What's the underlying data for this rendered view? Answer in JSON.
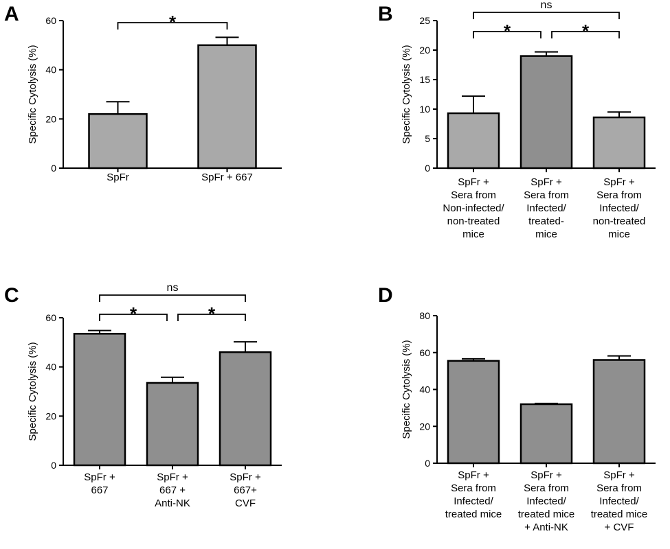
{
  "chart_data": [
    {
      "panel": "A",
      "type": "bar",
      "ylabel": "Specific Cytolysis (%)",
      "ylim": [
        0,
        60
      ],
      "yticks": [
        0,
        20,
        40,
        60
      ],
      "bar_color": "#a9a9a9",
      "categories": [
        [
          "SpFr"
        ],
        [
          "SpFr + 667"
        ]
      ],
      "values": [
        22,
        50
      ],
      "errors": [
        5,
        3.2
      ],
      "significance": [
        {
          "from": 0,
          "to": 1,
          "label": "*"
        }
      ]
    },
    {
      "panel": "B",
      "type": "bar",
      "ylabel": "Specific Cytolysis (%)",
      "ylim": [
        0,
        25
      ],
      "yticks": [
        0,
        5,
        10,
        15,
        20,
        25
      ],
      "bar_colors": [
        "#a9a9a9",
        "#8f8f8f",
        "#a9a9a9"
      ],
      "categories": [
        [
          "SpFr +",
          "Sera from",
          "Non-infected/",
          "non-treated",
          "mice"
        ],
        [
          "SpFr +",
          "Sera from",
          "Infected/",
          "treated-",
          "mice"
        ],
        [
          "SpFr +",
          "Sera from",
          "Infected/",
          "non-treated",
          "mice"
        ]
      ],
      "values": [
        9.3,
        19,
        8.6
      ],
      "errors": [
        2.9,
        0.7,
        0.9
      ],
      "significance": [
        {
          "from": 0,
          "to": 1,
          "label": "*"
        },
        {
          "from": 1,
          "to": 2,
          "label": "*"
        },
        {
          "from": 0,
          "to": 2,
          "label": "ns"
        }
      ]
    },
    {
      "panel": "C",
      "type": "bar",
      "ylabel": "Specific Cytolysis (%)",
      "ylim": [
        0,
        60
      ],
      "yticks": [
        0,
        20,
        40,
        60
      ],
      "bar_color": "#8f8f8f",
      "categories": [
        [
          "SpFr +",
          "667"
        ],
        [
          "SpFr +",
          "667 +",
          "Anti-NK"
        ],
        [
          "SpFr +",
          "667+",
          "CVF"
        ]
      ],
      "values": [
        53.5,
        33.5,
        46
      ],
      "errors": [
        1.3,
        2.3,
        4.2
      ],
      "significance": [
        {
          "from": 0,
          "to": 1,
          "label": "*"
        },
        {
          "from": 1,
          "to": 2,
          "label": "*"
        },
        {
          "from": 0,
          "to": 2,
          "label": "ns"
        }
      ]
    },
    {
      "panel": "D",
      "type": "bar",
      "ylabel": "Specific Cytolysis (%)",
      "ylim": [
        0,
        80
      ],
      "yticks": [
        0,
        20,
        40,
        60,
        80
      ],
      "bar_color": "#8f8f8f",
      "categories": [
        [
          "SpFr +",
          "Sera from",
          "Infected/",
          "treated mice"
        ],
        [
          "SpFr +",
          "Sera from",
          "Infected/",
          "treated mice",
          "+  Anti-NK"
        ],
        [
          "SpFr +",
          "Sera from",
          "Infected/",
          "treated mice",
          "+ CVF"
        ]
      ],
      "values": [
        55.5,
        32,
        56
      ],
      "errors": [
        1.1,
        0.4,
        2.2
      ],
      "significance": []
    }
  ]
}
